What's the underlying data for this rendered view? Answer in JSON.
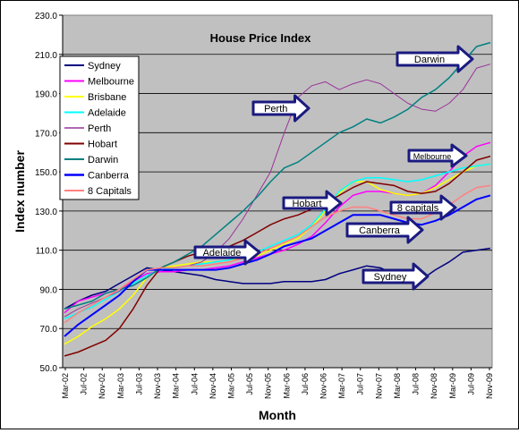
{
  "chart_data": {
    "type": "line",
    "title": "House Price Index",
    "xlabel": "Month",
    "ylabel": "Index number",
    "ylim": [
      50,
      230
    ],
    "yticks": [
      "50.0",
      "70.0",
      "90.0",
      "110.0",
      "130.0",
      "150.0",
      "170.0",
      "190.0",
      "210.0",
      "230.0"
    ],
    "x": [
      "Mar-02",
      "Jun-02",
      "Sep-02",
      "Dec-02",
      "Mar-03",
      "Jun-03",
      "Sep-03",
      "Dec-03",
      "Mar-04",
      "Jun-04",
      "Sep-04",
      "Dec-04",
      "Mar-05",
      "Jun-05",
      "Sep-05",
      "Dec-05",
      "Mar-06",
      "Jun-06",
      "Sep-06",
      "Dec-06",
      "Mar-07",
      "Jun-07",
      "Sep-07",
      "Dec-07",
      "Mar-08",
      "Jun-08",
      "Sep-08",
      "Dec-08",
      "Mar-09",
      "Jun-09",
      "Sep-09",
      "Dec-09"
    ],
    "xtick_labels": [
      "Mar-02",
      "Jul-02",
      "Nov-02",
      "Mar-03",
      "Jul-03",
      "Nov-03",
      "Mar-04",
      "Jul-04",
      "Nov-04",
      "Mar-05",
      "Jul-05",
      "Nov-05",
      "Mar-06",
      "Jul-06",
      "Nov-06",
      "Mar-07",
      "Jul-07",
      "Nov-07",
      "Mar-08",
      "Jul-08",
      "Nov-08",
      "Mar-09",
      "Jul-09",
      "Nov-09"
    ],
    "grid": true,
    "legend_position": "top-left",
    "plot_background": "#c0c0c0",
    "series": [
      {
        "name": "Sydney",
        "color": "#000080",
        "width": 1.5,
        "values": [
          80,
          84,
          87,
          89,
          93,
          97,
          101,
          100,
          99,
          98,
          97,
          95,
          94,
          93,
          93,
          93,
          94,
          94,
          94,
          95,
          98,
          100,
          102,
          101,
          98,
          96,
          95,
          100,
          104,
          109,
          110,
          111
        ]
      },
      {
        "name": "Melbourne",
        "color": "#ff00ff",
        "width": 1.5,
        "values": [
          78,
          84,
          86,
          88,
          90,
          94,
          98,
          99,
          99,
          100,
          100,
          101,
          102,
          104,
          106,
          108,
          110,
          113,
          117,
          124,
          132,
          138,
          140,
          140,
          139,
          138,
          139,
          143,
          150,
          158,
          163,
          165
        ]
      },
      {
        "name": "Brisbane",
        "color": "#ffff00",
        "width": 1.5,
        "values": [
          62,
          66,
          71,
          75,
          80,
          87,
          96,
          101,
          102,
          103,
          104,
          104,
          105,
          106,
          107,
          110,
          113,
          116,
          122,
          130,
          139,
          145,
          145,
          141,
          139,
          138,
          139,
          142,
          146,
          150,
          153,
          154
        ]
      },
      {
        "name": "Adelaide",
        "color": "#00ffff",
        "width": 1.5,
        "values": [
          75,
          78,
          81,
          85,
          89,
          93,
          97,
          100,
          101,
          102,
          103,
          104,
          105,
          107,
          109,
          112,
          115,
          118,
          123,
          131,
          140,
          145,
          147,
          147,
          146,
          145,
          146,
          148,
          150,
          152,
          153,
          154
        ]
      },
      {
        "name": "Perth",
        "color": "#993399",
        "width": 1,
        "values": [
          76,
          80,
          83,
          86,
          89,
          94,
          100,
          101,
          101,
          102,
          104,
          109,
          116,
          126,
          138,
          150,
          170,
          188,
          194,
          196,
          192,
          195,
          197,
          195,
          190,
          185,
          182,
          181,
          185,
          192,
          203,
          205
        ]
      },
      {
        "name": "Hobart",
        "color": "#800000",
        "width": 1.5,
        "values": [
          56,
          58,
          61,
          64,
          70,
          80,
          92,
          101,
          104,
          107,
          109,
          110,
          112,
          115,
          119,
          123,
          126,
          128,
          131,
          134,
          138,
          142,
          145,
          144,
          143,
          140,
          139,
          140,
          144,
          150,
          156,
          158
        ]
      },
      {
        "name": "Darwin",
        "color": "#008080",
        "width": 1.5,
        "values": [
          80,
          82,
          84,
          88,
          90,
          92,
          96,
          101,
          104,
          108,
          112,
          118,
          124,
          130,
          137,
          145,
          152,
          155,
          160,
          165,
          170,
          173,
          177,
          175,
          178,
          182,
          188,
          192,
          198,
          206,
          214,
          216
        ]
      },
      {
        "name": "Canberra",
        "color": "#0000ff",
        "width": 2,
        "values": [
          66,
          72,
          77,
          82,
          87,
          94,
          100,
          100,
          100,
          100,
          100,
          100,
          101,
          103,
          105,
          108,
          112,
          114,
          116,
          120,
          124,
          128,
          128,
          128,
          126,
          124,
          123,
          125,
          128,
          132,
          136,
          138
        ]
      },
      {
        "name": "8 Capitals",
        "color": "#ff8080",
        "width": 1.5,
        "values": [
          73,
          78,
          82,
          86,
          90,
          95,
          100,
          101,
          101,
          102,
          102,
          103,
          104,
          106,
          108,
          111,
          114,
          117,
          122,
          127,
          130,
          132,
          132,
          130,
          128,
          126,
          126,
          129,
          133,
          138,
          142,
          143
        ]
      }
    ],
    "annotations": [
      {
        "text": "Darwin",
        "size": "large"
      },
      {
        "text": "Perth",
        "size": "medium"
      },
      {
        "text": "Melbourne",
        "size": "small"
      },
      {
        "text": "Hobart",
        "size": "medium"
      },
      {
        "text": "8 capitals",
        "size": "medium"
      },
      {
        "text": "Canberra",
        "size": "medium"
      },
      {
        "text": "Adelaide",
        "size": "medium"
      },
      {
        "text": "Sydney",
        "size": "medium"
      }
    ]
  }
}
